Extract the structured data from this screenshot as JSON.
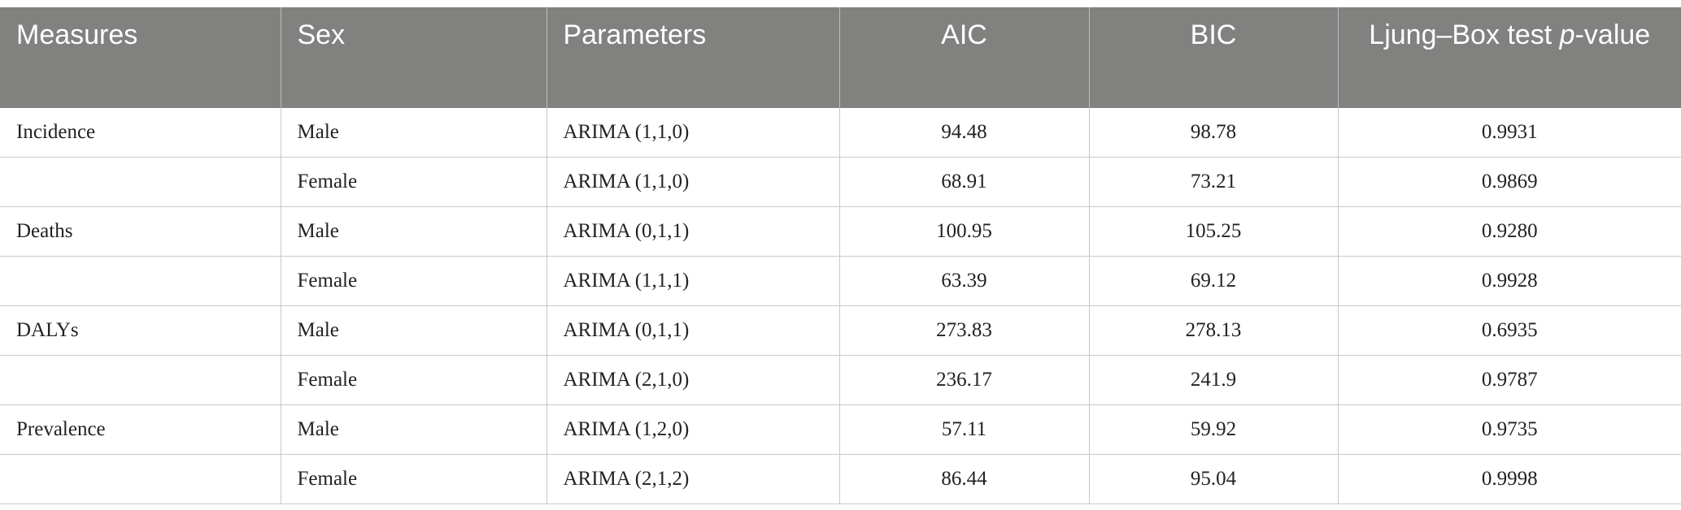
{
  "table": {
    "header": [
      "Measures",
      "Sex",
      "Parameters",
      "AIC",
      "BIC",
      [
        "Ljung–Box test ",
        "p",
        "-value"
      ]
    ],
    "rows": [
      [
        "Incidence",
        "Male",
        "ARIMA (1,1,0)",
        "94.48",
        "98.78",
        "0.9931"
      ],
      [
        null,
        "Female",
        "ARIMA (1,1,0)",
        "68.91",
        "73.21",
        "0.9869"
      ],
      [
        "Deaths",
        "Male",
        "ARIMA (0,1,1)",
        "100.95",
        "105.25",
        "0.9280"
      ],
      [
        null,
        "Female",
        "ARIMA (1,1,1)",
        "63.39",
        "69.12",
        "0.9928"
      ],
      [
        "DALYs",
        "Male",
        "ARIMA (0,1,1)",
        "273.83",
        "278.13",
        "0.6935"
      ],
      [
        null,
        "Female",
        "ARIMA (2,1,0)",
        "236.17",
        "241.9",
        "0.9787"
      ],
      [
        "Prevalence",
        "Male",
        "ARIMA (1,2,0)",
        "57.11",
        "59.92",
        "0.9735"
      ],
      [
        null,
        "Female",
        "ARIMA (2,1,2)",
        "86.44",
        "95.04",
        "0.9998"
      ]
    ]
  }
}
